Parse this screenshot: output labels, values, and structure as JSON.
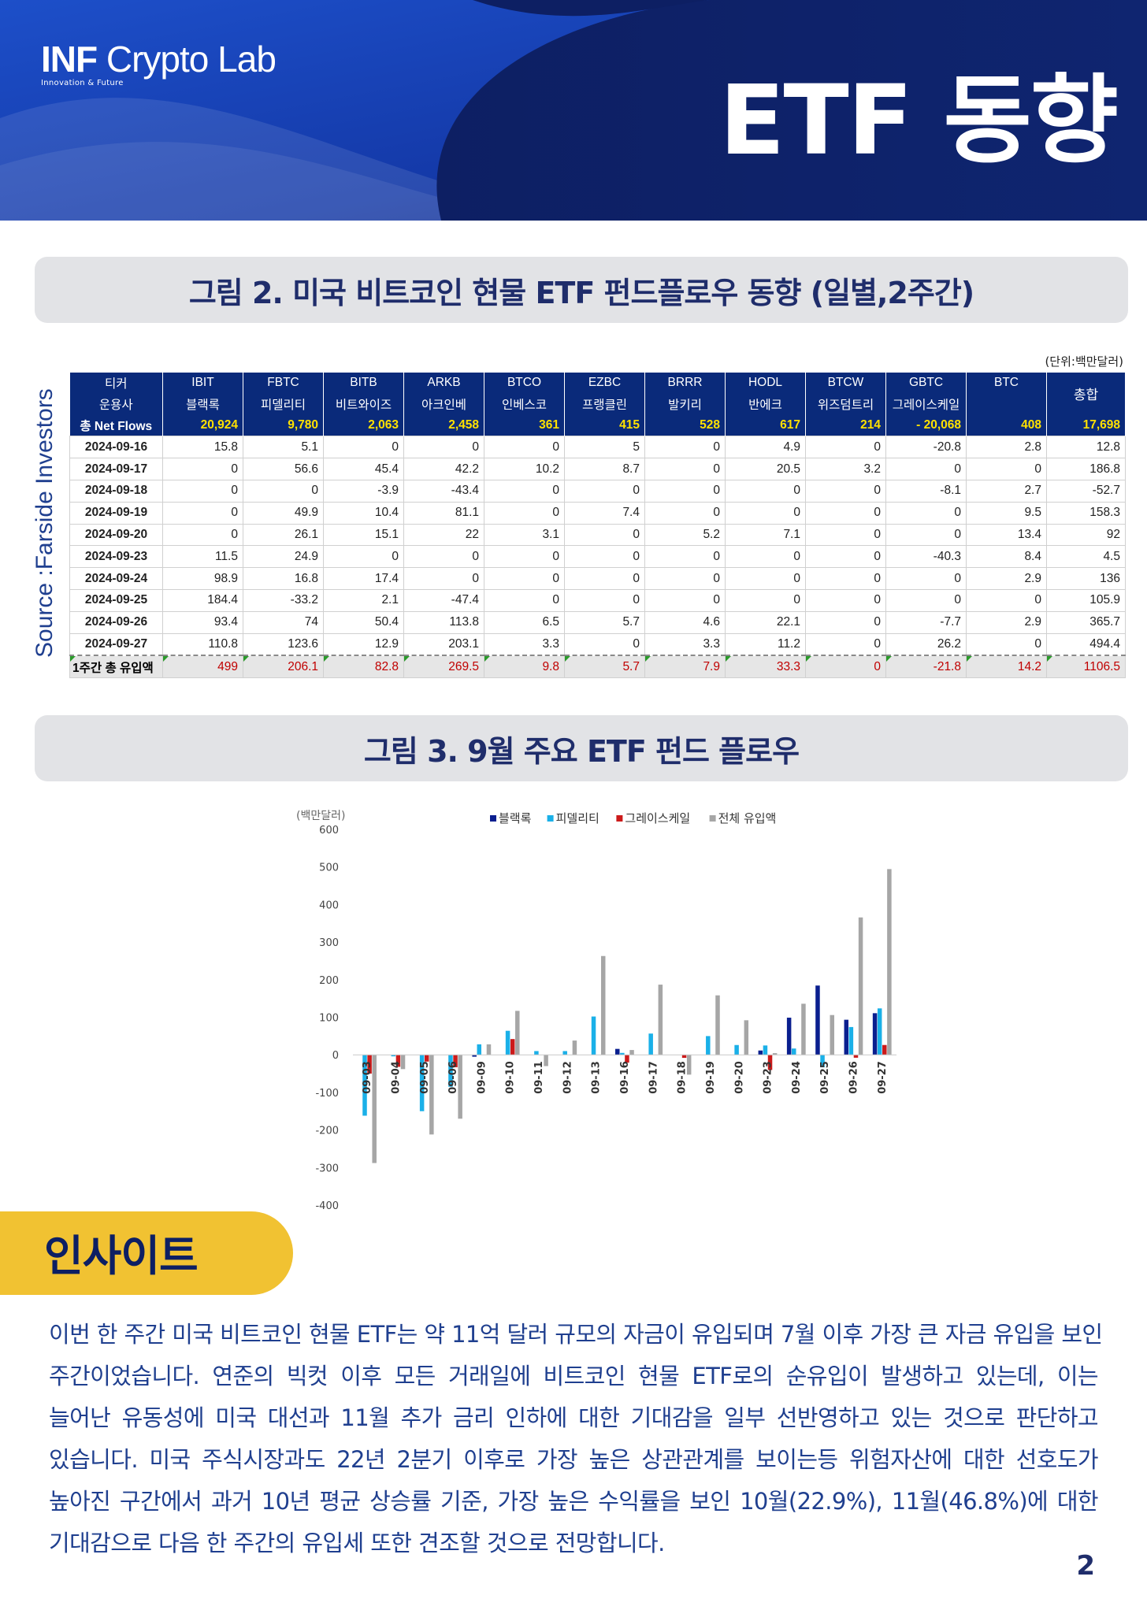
{
  "header": {
    "logo_bold": "INF",
    "logo_rest": " Crypto Lab",
    "logo_sub": "Innovation & Future",
    "title": "ETF 동향"
  },
  "figure2": {
    "title": "그림 2.  미국 비트코인 현물 ETF 펀드플로우 동향 (일별,2주간)",
    "unit": "(단위:백만달러)",
    "source": "Source :Farside Investors",
    "row_label_ticker": "티커",
    "row_label_manager": "운용사",
    "row_label_net": "총 Net Flows",
    "total_label": "총합",
    "tickers": [
      "IBIT",
      "FBTC",
      "BITB",
      "ARKB",
      "BTCO",
      "EZBC",
      "BRRR",
      "HODL",
      "BTCW",
      "GBTC",
      "BTC"
    ],
    "managers": [
      "블랙록",
      "피델리티",
      "비트와이즈",
      "아크인베",
      "인베스코",
      "프랭클린",
      "발키리",
      "반에크",
      "위즈덤트리",
      "그레이스케일",
      ""
    ],
    "net_flows": [
      "20,924",
      "9,780",
      "2,063",
      "2,458",
      "361",
      "415",
      "528",
      "617",
      "214",
      "-  20,068",
      "408",
      "17,698"
    ],
    "rows": [
      {
        "date": "2024-09-16",
        "values": [
          "15.8",
          "5.1",
          "0",
          "0",
          "0",
          "5",
          "0",
          "4.9",
          "0",
          "-20.8",
          "2.8",
          "12.8"
        ]
      },
      {
        "date": "2024-09-17",
        "values": [
          "0",
          "56.6",
          "45.4",
          "42.2",
          "10.2",
          "8.7",
          "0",
          "20.5",
          "3.2",
          "0",
          "0",
          "186.8"
        ]
      },
      {
        "date": "2024-09-18",
        "values": [
          "0",
          "0",
          "-3.9",
          "-43.4",
          "0",
          "0",
          "0",
          "0",
          "0",
          "-8.1",
          "2.7",
          "-52.7"
        ]
      },
      {
        "date": "2024-09-19",
        "values": [
          "0",
          "49.9",
          "10.4",
          "81.1",
          "0",
          "7.4",
          "0",
          "0",
          "0",
          "0",
          "9.5",
          "158.3"
        ]
      },
      {
        "date": "2024-09-20",
        "values": [
          "0",
          "26.1",
          "15.1",
          "22",
          "3.1",
          "0",
          "5.2",
          "7.1",
          "0",
          "0",
          "13.4",
          "92"
        ]
      },
      {
        "date": "2024-09-23",
        "values": [
          "11.5",
          "24.9",
          "0",
          "0",
          "0",
          "0",
          "0",
          "0",
          "0",
          "-40.3",
          "8.4",
          "4.5"
        ]
      },
      {
        "date": "2024-09-24",
        "values": [
          "98.9",
          "16.8",
          "17.4",
          "0",
          "0",
          "0",
          "0",
          "0",
          "0",
          "0",
          "2.9",
          "136"
        ]
      },
      {
        "date": "2024-09-25",
        "values": [
          "184.4",
          "-33.2",
          "2.1",
          "-47.4",
          "0",
          "0",
          "0",
          "0",
          "0",
          "0",
          "0",
          "105.9"
        ]
      },
      {
        "date": "2024-09-26",
        "values": [
          "93.4",
          "74",
          "50.4",
          "113.8",
          "6.5",
          "5.7",
          "4.6",
          "22.1",
          "0",
          "-7.7",
          "2.9",
          "365.7"
        ]
      },
      {
        "date": "2024-09-27",
        "values": [
          "110.8",
          "123.6",
          "12.9",
          "203.1",
          "3.3",
          "0",
          "3.3",
          "11.2",
          "0",
          "26.2",
          "0",
          "494.4"
        ]
      }
    ],
    "sum_label": "1주간 총 유입액",
    "sum_values": [
      "499",
      "206.1",
      "82.8",
      "269.5",
      "9.8",
      "5.7",
      "7.9",
      "33.3",
      "0",
      "-21.8",
      "14.2",
      "1106.5"
    ]
  },
  "figure3": {
    "title": "그림 3.  9월 주요 ETF 펀드 플로우"
  },
  "chart_data": {
    "type": "bar",
    "ylabel": "(백만달러)",
    "ylim": [
      -400,
      600
    ],
    "yticks": [
      "600",
      "500",
      "400",
      "300",
      "200",
      "100",
      "0",
      "-100",
      "-200",
      "-300",
      "-400"
    ],
    "categories": [
      "09-03",
      "09-04",
      "09-05",
      "09-06",
      "09-09",
      "09-10",
      "09-11",
      "09-12",
      "09-13",
      "09-16",
      "09-17",
      "09-18",
      "09-19",
      "09-20",
      "09-23",
      "09-24",
      "09-25",
      "09-26",
      "09-27"
    ],
    "series": [
      {
        "name": "블랙록",
        "color": "#0a1f8f",
        "values": [
          0,
          0,
          0,
          0,
          -5,
          0,
          0,
          0,
          0,
          15.8,
          0,
          0,
          0,
          0,
          11.5,
          98.9,
          184.4,
          93.4,
          110.8
        ]
      },
      {
        "name": "피델리티",
        "color": "#1ab0e8",
        "values": [
          -162,
          -4,
          -150,
          -85,
          28,
          64,
          10,
          10,
          102,
          5.1,
          56.6,
          0,
          49.9,
          26.1,
          24.9,
          16.8,
          -33.2,
          74,
          123.6
        ]
      },
      {
        "name": "그레이스케일",
        "color": "#cc1a1a",
        "values": [
          -50,
          -32,
          -18,
          -33,
          0,
          42,
          0,
          0,
          0,
          -20.8,
          0,
          -8.1,
          0,
          0,
          -40.3,
          0,
          0,
          -7.7,
          26.2
        ]
      },
      {
        "name": "전체 유입액",
        "color": "#a6a6a6",
        "values": [
          -288,
          -38,
          -212,
          -170,
          28,
          117,
          -30,
          38,
          263,
          12.8,
          186.8,
          -52.7,
          158.3,
          92,
          4.5,
          136,
          105.9,
          365.7,
          494.4
        ]
      }
    ]
  },
  "insight": {
    "heading": "인사이트",
    "lines": [
      "이번 한 주간 미국 비트코인 현물 ETF는 약 11억 달러 규모의 자금이 유입되며 7월 이후 가장 큰 자금 유입을 보인",
      "주간이었습니다. 연준의 빅컷 이후 모든 거래일에 비트코인 현물 ETF로의 순유입이 발생하고 있는데, 이는",
      "늘어난 유동성에 미국 대선과 11월 추가 금리 인하에 대한 기대감을 일부 선반영하고 있는 것으로 판단하고",
      "있습니다. 미국 주식시장과도 22년 2분기 이후로 가장 높은 상관관계를 보이는등 위험자산에 대한 선호도가",
      "높아진 구간에서 과거 10년 평균 상승률 기준, 가장 높은 수익률을 보인 10월(22.9%), 11월(46.8%)에 대한",
      "기대감으로 다음 한 주간의 유입세 또한 견조할 것으로 전망합니다."
    ]
  },
  "page_number": "2"
}
